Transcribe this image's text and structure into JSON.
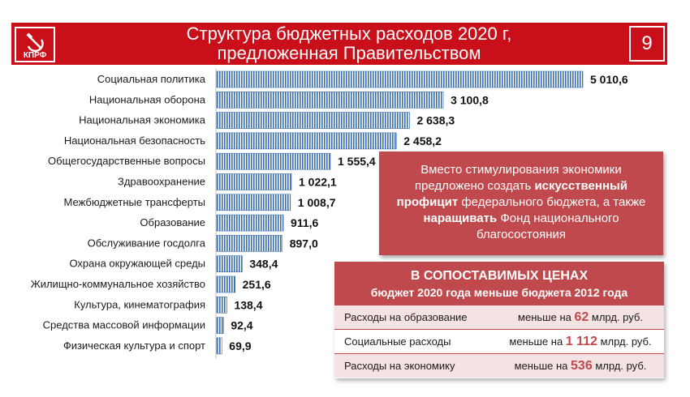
{
  "header": {
    "title_line1": "Структура бюджетных расходов 2020 г,",
    "title_line2": "предложенная Правительством",
    "page_number": "9",
    "logo_text": "КПРФ",
    "accent_color": "#c80f1a"
  },
  "chart_data": {
    "type": "bar",
    "orientation": "horizontal",
    "categories": [
      "Социальная политика",
      "Национальная оборона",
      "Национальная экономика",
      "Национальная безопасность",
      "Общегосударственные вопросы",
      "Здравоохранение",
      "Межбюджетные трансферты",
      "Образование",
      "Обслуживание госдолга",
      "Охрана окружающей среды",
      "Жилищно-коммунальное хозяйство",
      "Культура, кинематография",
      "Средства массовой информации",
      "Физическая культура и спорт"
    ],
    "values": [
      5010.6,
      3100.8,
      2638.3,
      2458.2,
      1555.4,
      1022.1,
      1008.7,
      911.6,
      897.0,
      348.4,
      251.6,
      138.4,
      92.4,
      69.9
    ],
    "value_labels": [
      "5 010,6",
      "3 100,8",
      "2 638,3",
      "2 458,2",
      "1 555,4",
      "1 022,1",
      "1 008,7",
      "911,6",
      "897,0",
      "348,4",
      "251,6",
      "138,4",
      "92,4",
      "69,9"
    ],
    "bar_color": "#3a6fb0",
    "xlim": [
      0,
      5010.6
    ],
    "grid": false,
    "title": "",
    "xlabel": "",
    "ylabel": ""
  },
  "callout": {
    "line1": "Вместо стимулирования экономики",
    "line2_pre": "предложено создать ",
    "line2_bold": "искусственный",
    "line3_bold": "профицит",
    "line3_post": " федерального бюджета, а также",
    "line4_bold": "наращивать",
    "line4_post": " Фонд национального",
    "line5": "благосостояния"
  },
  "comparison_table": {
    "heading1": "В СОПОСТАВИМЫХ ЦЕНАХ",
    "heading2": "бюджет 2020 года меньше бюджета 2012 года",
    "rows": [
      {
        "label": "Расходы на образование",
        "prefix": "меньше на ",
        "value": "62",
        "suffix": " млрд. руб."
      },
      {
        "label": "Социальные расходы",
        "prefix": "меньше на ",
        "value": "1 112",
        "suffix": " млрд. руб."
      },
      {
        "label": "Расходы на экономику",
        "prefix": "меньше на ",
        "value": "536",
        "suffix": " млрд. руб."
      }
    ]
  }
}
